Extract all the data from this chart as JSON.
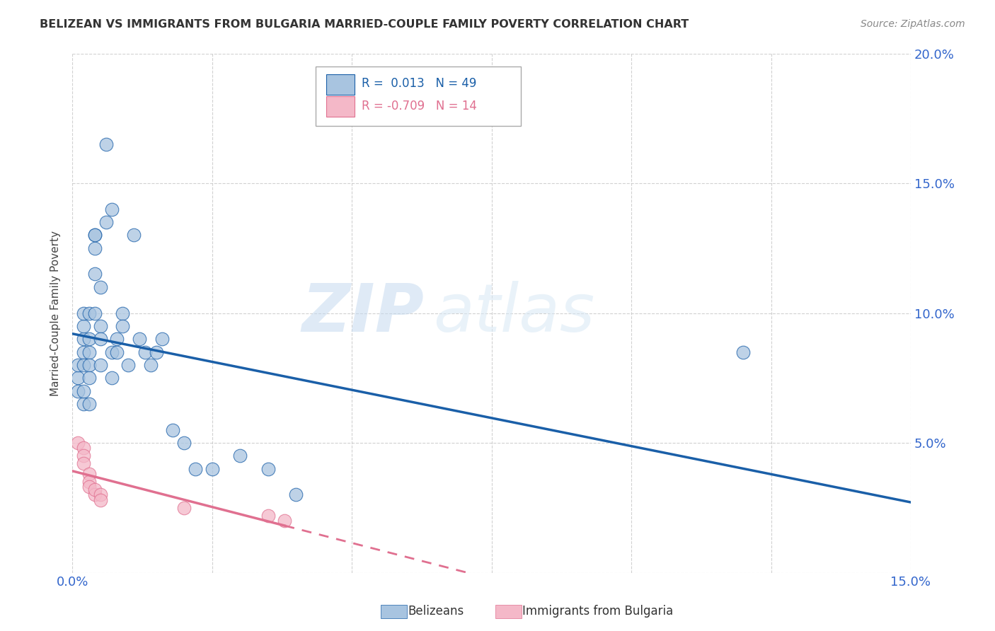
{
  "title": "BELIZEAN VS IMMIGRANTS FROM BULGARIA MARRIED-COUPLE FAMILY POVERTY CORRELATION CHART",
  "source": "Source: ZipAtlas.com",
  "ylabel": "Married-Couple Family Poverty",
  "xmin": 0.0,
  "xmax": 0.15,
  "ymin": 0.0,
  "ymax": 0.2,
  "yticks": [
    0.0,
    0.05,
    0.1,
    0.15,
    0.2
  ],
  "ytick_labels": [
    "",
    "5.0%",
    "10.0%",
    "15.0%",
    "20.0%"
  ],
  "belizean_color": "#a8c4e0",
  "bulgaria_color": "#f4b8c8",
  "trend_belizean_color": "#1a5fa8",
  "trend_bulgaria_color": "#e07090",
  "legend_label_belizean": "Belizeans",
  "legend_label_bulgaria": "Immigrants from Bulgaria",
  "R_belizean": 0.013,
  "N_belizean": 49,
  "R_bulgaria": -0.709,
  "N_bulgaria": 14,
  "belizean_x": [
    0.001,
    0.001,
    0.001,
    0.002,
    0.002,
    0.002,
    0.002,
    0.002,
    0.002,
    0.002,
    0.003,
    0.003,
    0.003,
    0.003,
    0.003,
    0.003,
    0.004,
    0.004,
    0.004,
    0.004,
    0.004,
    0.005,
    0.005,
    0.005,
    0.005,
    0.006,
    0.006,
    0.007,
    0.007,
    0.007,
    0.008,
    0.008,
    0.009,
    0.009,
    0.01,
    0.011,
    0.012,
    0.013,
    0.014,
    0.015,
    0.016,
    0.018,
    0.02,
    0.022,
    0.025,
    0.03,
    0.035,
    0.04,
    0.12
  ],
  "belizean_y": [
    0.075,
    0.08,
    0.07,
    0.085,
    0.065,
    0.08,
    0.07,
    0.09,
    0.095,
    0.1,
    0.085,
    0.065,
    0.1,
    0.09,
    0.08,
    0.075,
    0.13,
    0.125,
    0.115,
    0.13,
    0.1,
    0.11,
    0.095,
    0.09,
    0.08,
    0.135,
    0.165,
    0.14,
    0.085,
    0.075,
    0.09,
    0.085,
    0.1,
    0.095,
    0.08,
    0.13,
    0.09,
    0.085,
    0.08,
    0.085,
    0.09,
    0.055,
    0.05,
    0.04,
    0.04,
    0.045,
    0.04,
    0.03,
    0.085
  ],
  "bulgaria_x": [
    0.001,
    0.002,
    0.002,
    0.002,
    0.003,
    0.003,
    0.003,
    0.004,
    0.004,
    0.005,
    0.005,
    0.02,
    0.035,
    0.038
  ],
  "bulgaria_y": [
    0.05,
    0.048,
    0.045,
    0.042,
    0.038,
    0.035,
    0.033,
    0.03,
    0.032,
    0.03,
    0.028,
    0.025,
    0.022,
    0.02
  ],
  "watermark_zip": "ZIP",
  "watermark_atlas": "atlas",
  "background_color": "#ffffff"
}
